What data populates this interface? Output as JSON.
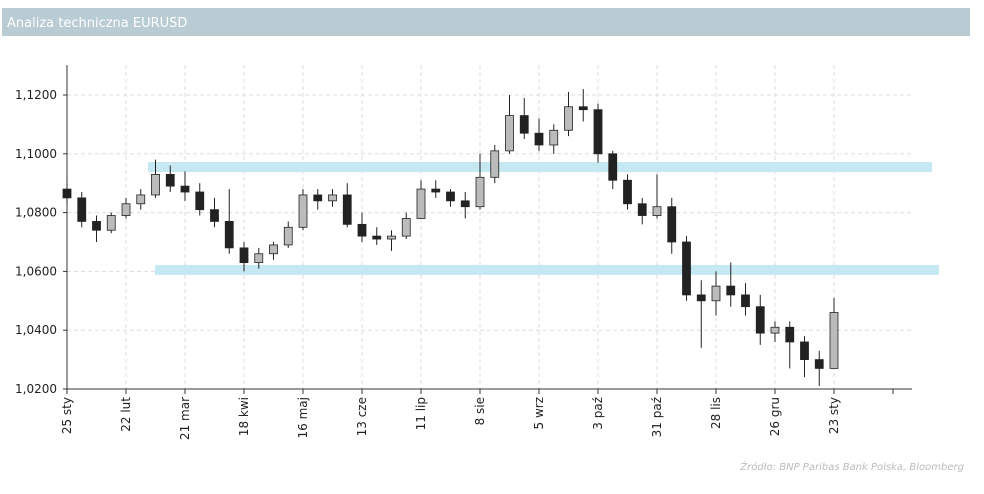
{
  "header": {
    "title": "Analiza techniczna EURUSD"
  },
  "chart_data": {
    "type": "candlestick",
    "categories": [
      "25 sty",
      null,
      null,
      null,
      "22 lut",
      null,
      null,
      null,
      "21 mar",
      null,
      null,
      null,
      "18 kwi",
      null,
      null,
      null,
      "16 maj",
      null,
      null,
      null,
      "13 cze",
      null,
      null,
      null,
      "11 lip",
      null,
      null,
      null,
      "8 sie",
      null,
      null,
      null,
      "5 wrz",
      null,
      null,
      null,
      "3 paź",
      null,
      null,
      null,
      "31 paź",
      null,
      null,
      null,
      "28 lis",
      null,
      null,
      null,
      "26 gru",
      null,
      null,
      null,
      "23 sty"
    ],
    "open": [
      1.088,
      1.085,
      1.077,
      1.074,
      1.079,
      1.083,
      1.086,
      1.093,
      1.089,
      1.087,
      1.081,
      1.077,
      1.068,
      1.063,
      1.066,
      1.069,
      1.075,
      1.086,
      1.084,
      1.086,
      1.076,
      1.072,
      1.071,
      1.072,
      1.078,
      1.088,
      1.087,
      1.084,
      1.082,
      1.092,
      1.101,
      1.113,
      1.107,
      1.103,
      1.108,
      1.116,
      1.115,
      1.1,
      1.091,
      1.083,
      1.079,
      1.082,
      1.07,
      1.052,
      1.05,
      1.055,
      1.052,
      1.048,
      1.039,
      1.041,
      1.036,
      1.03,
      1.027
    ],
    "high": [
      1.09,
      1.087,
      1.079,
      1.08,
      1.085,
      1.088,
      1.098,
      1.096,
      1.094,
      1.09,
      1.085,
      1.088,
      1.07,
      1.068,
      1.07,
      1.077,
      1.088,
      1.088,
      1.088,
      1.09,
      1.08,
      1.075,
      1.074,
      1.08,
      1.091,
      1.091,
      1.088,
      1.087,
      1.1,
      1.103,
      1.12,
      1.119,
      1.112,
      1.11,
      1.121,
      1.122,
      1.117,
      1.101,
      1.093,
      1.085,
      1.093,
      1.085,
      1.072,
      1.057,
      1.06,
      1.063,
      1.056,
      1.052,
      1.043,
      1.043,
      1.038,
      1.033,
      1.051
    ],
    "low": [
      1.083,
      1.075,
      1.07,
      1.073,
      1.078,
      1.081,
      1.085,
      1.087,
      1.084,
      1.079,
      1.075,
      1.066,
      1.06,
      1.061,
      1.064,
      1.068,
      1.074,
      1.081,
      1.082,
      1.075,
      1.07,
      1.069,
      1.067,
      1.071,
      1.078,
      1.085,
      1.082,
      1.078,
      1.081,
      1.09,
      1.1,
      1.105,
      1.101,
      1.1,
      1.106,
      1.111,
      1.097,
      1.088,
      1.081,
      1.076,
      1.078,
      1.066,
      1.05,
      1.034,
      1.045,
      1.048,
      1.045,
      1.035,
      1.036,
      1.027,
      1.024,
      1.021,
      1.027
    ],
    "close": [
      1.085,
      1.077,
      1.074,
      1.079,
      1.083,
      1.086,
      1.093,
      1.089,
      1.087,
      1.081,
      1.077,
      1.068,
      1.063,
      1.066,
      1.069,
      1.075,
      1.086,
      1.084,
      1.086,
      1.076,
      1.072,
      1.071,
      1.072,
      1.078,
      1.088,
      1.087,
      1.084,
      1.082,
      1.092,
      1.101,
      1.113,
      1.107,
      1.103,
      1.108,
      1.116,
      1.115,
      1.1,
      1.091,
      1.083,
      1.079,
      1.082,
      1.07,
      1.052,
      1.05,
      1.055,
      1.052,
      1.048,
      1.039,
      1.041,
      1.036,
      1.03,
      1.027,
      1.046
    ],
    "up_color": "#bbbbbb",
    "down_color": "#222222",
    "ylim": [
      1.02,
      1.1302
    ],
    "yticks": [
      {
        "value": 1.02,
        "label": "1,0200"
      },
      {
        "value": 1.04,
        "label": "1,0400"
      },
      {
        "value": 1.06,
        "label": "1,0600"
      },
      {
        "value": 1.08,
        "label": "1,0800"
      },
      {
        "value": 1.1,
        "label": "1,1000"
      },
      {
        "value": 1.12,
        "label": "1,1200"
      }
    ],
    "grid": true,
    "bands": [
      {
        "value": 1.0955,
        "color": "#c6e8f3"
      },
      {
        "value": 1.0605,
        "color": "#c6e8f3"
      }
    ],
    "source": "Źródło: BNP Paribas Bank Polska, Bloomberg"
  }
}
